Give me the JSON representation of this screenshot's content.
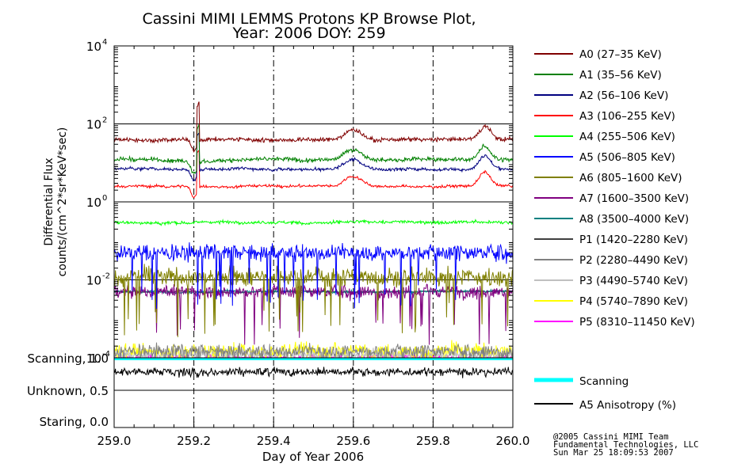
{
  "chart_data": {
    "type": "line",
    "title_line1": "Cassini MIMI LEMMS Protons KP Browse Plot,",
    "title_line2": "Year: 2006 DOY: 259",
    "xlabel": "Day of Year 2006",
    "ylabel_line1": "Differential Flux",
    "ylabel_line2": "counts/(cm^2*sr*KeV*sec)",
    "xlim": [
      259.0,
      260.0
    ],
    "x_ticks": [
      "259.0",
      "259.2",
      "259.4",
      "259.6",
      "259.8",
      "260.0"
    ],
    "x_tick_values": [
      259.0,
      259.2,
      259.4,
      259.6,
      259.8,
      260.0
    ],
    "y_scale": "log",
    "ylim": [
      0.0001,
      10000
    ],
    "y_ticks": [
      {
        "base": "10",
        "exp": "4",
        "value": 10000
      },
      {
        "base": "10",
        "exp": "2",
        "value": 100
      },
      {
        "base": "10",
        "exp": "0",
        "value": 1
      },
      {
        "base": "10",
        "exp": "-2",
        "value": 0.01
      },
      {
        "base": "10",
        "exp": "-4",
        "value": 0.0001
      }
    ],
    "series": [
      {
        "name": "A0 (27–35 KeV)",
        "color": "#800000",
        "typical": 40,
        "noise": 0.08
      },
      {
        "name": "A1 (35–56 KeV)",
        "color": "#008000",
        "typical": 12,
        "noise": 0.08
      },
      {
        "name": "A2 (56–106 KeV)",
        "color": "#000080",
        "typical": 7,
        "noise": 0.06
      },
      {
        "name": "A3 (106–255 KeV)",
        "color": "#ff0000",
        "typical": 2.5,
        "noise": 0.05
      },
      {
        "name": "A4 (255–506 KeV)",
        "color": "#00ff00",
        "typical": 0.3,
        "noise": 0.06
      },
      {
        "name": "A5 (506–805 KeV)",
        "color": "#0000ff",
        "typical": 0.05,
        "noise": 0.3
      },
      {
        "name": "A6 (805–1600 KeV)",
        "color": "#808000",
        "typical": 0.012,
        "noise": 0.35
      },
      {
        "name": "A7 (1600–3500 KeV)",
        "color": "#800080",
        "typical": 0.005,
        "noise": 0.25
      },
      {
        "name": "A8 (3500–4000 KeV)",
        "color": "#008080",
        "typical": 0.005,
        "noise": 0.05
      },
      {
        "name": "P1 (1420–2280 KeV)",
        "color": "#404040",
        "typical": 0.005,
        "noise": 0.03
      },
      {
        "name": "P2 (2280–4490 KeV)",
        "color": "#808080",
        "typical": 0.00015,
        "noise": 0.25
      },
      {
        "name": "P3 (4490–5740 KeV)",
        "color": "#c0c0c0",
        "typical": 0.00012,
        "noise": 0.2
      },
      {
        "name": "P4 (5740–7890 KeV)",
        "color": "#ffff00",
        "typical": 0.00015,
        "noise": 0.3
      },
      {
        "name": "P5 (8310–11450 KeV)",
        "color": "#ff00ff",
        "typical": 0.0001,
        "noise": 0.1
      }
    ],
    "lower_panel": {
      "y_ticks": [
        "Scanning, 1.0",
        "Unknown, 0.5",
        "Staring, 0.0"
      ],
      "y_tick_values": [
        1.0,
        0.5,
        0.0
      ],
      "series": [
        {
          "name": "Scanning",
          "color": "#00ffff",
          "value": 1.0
        },
        {
          "name": "A5 Anisotropy (%)",
          "color": "#000000",
          "typical": 0.78
        }
      ]
    }
  },
  "credits": {
    "line1": "@2005 Cassini MIMI Team",
    "line2": "Fundamental Technologies, LLC",
    "line3": "Sun Mar 25 18:09:53 2007"
  }
}
